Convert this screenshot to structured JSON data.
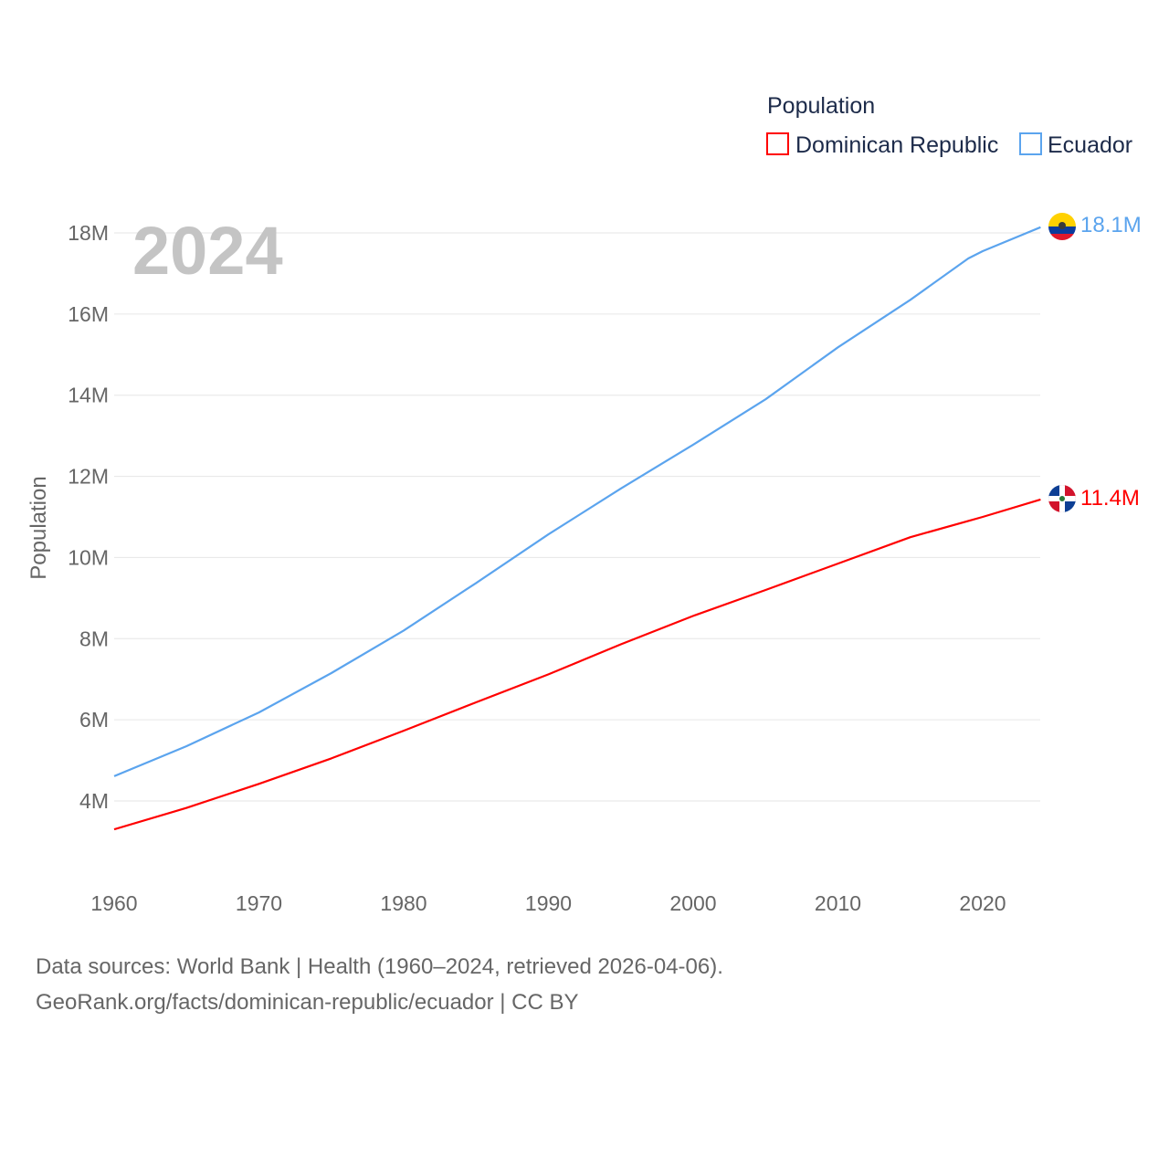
{
  "chart_data": {
    "type": "line",
    "title": "Population",
    "ylabel": "Population",
    "xlabel": "",
    "year_label": "2024",
    "ylim": [
      2.5,
      19
    ],
    "xlim": [
      1960,
      2024
    ],
    "yticks": [
      4,
      6,
      8,
      10,
      12,
      14,
      16,
      18
    ],
    "ytick_labels": [
      "4M",
      "6M",
      "8M",
      "10M",
      "12M",
      "14M",
      "16M",
      "18M"
    ],
    "xticks": [
      1960,
      1970,
      1980,
      1990,
      2000,
      2010,
      2020
    ],
    "xtick_labels": [
      "1960",
      "1970",
      "1980",
      "1990",
      "2000",
      "2010",
      "2020"
    ],
    "grid": true,
    "legend_placement": "top-right",
    "legend_title": "Population",
    "x": [
      1960,
      1965,
      1970,
      1975,
      1980,
      1985,
      1990,
      1995,
      2000,
      2005,
      2010,
      2015,
      2019,
      2020,
      2024
    ],
    "series": [
      {
        "name": "Dominican Republic",
        "color": "#ff0000",
        "end_label": "11.4M",
        "values": [
          3.3,
          3.83,
          4.42,
          5.05,
          5.73,
          6.43,
          7.12,
          7.86,
          8.56,
          9.2,
          9.85,
          10.5,
          10.9,
          11.0,
          11.43
        ]
      },
      {
        "name": "Ecuador",
        "color": "#5ba4ee",
        "end_label": "18.1M",
        "values": [
          4.61,
          5.35,
          6.18,
          7.15,
          8.2,
          9.37,
          10.57,
          11.7,
          12.78,
          13.9,
          15.18,
          16.35,
          17.37,
          17.55,
          18.14
        ]
      }
    ]
  },
  "footer": {
    "line1": "Data sources: World Bank | Health (1960–2024, retrieved 2026-04-06).",
    "line2": "GeoRank.org/facts/dominican-republic/ecuador | CC BY"
  }
}
